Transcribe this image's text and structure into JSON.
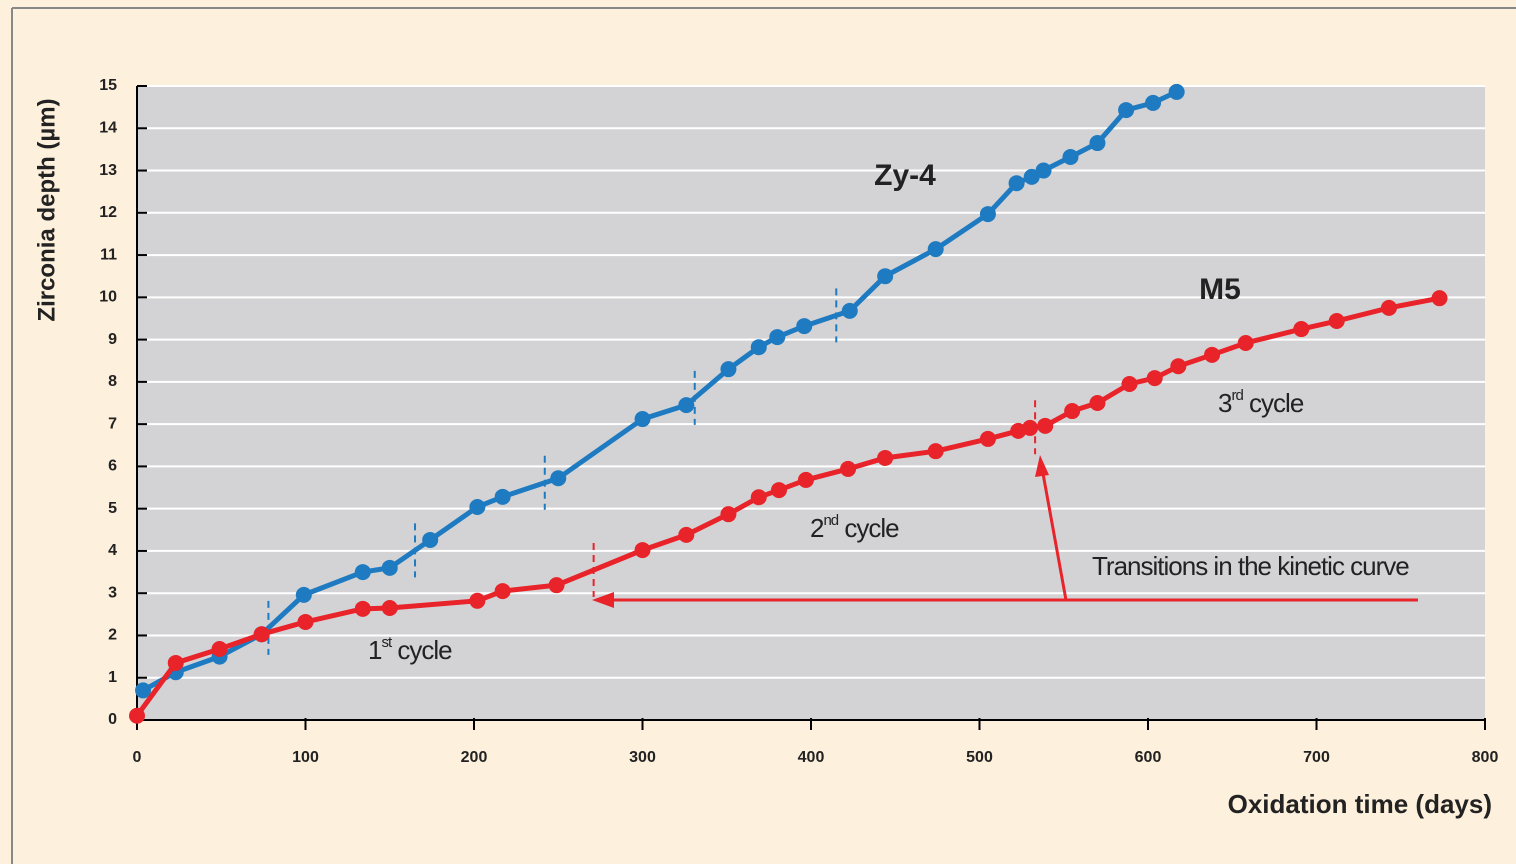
{
  "chart_data": {
    "type": "line",
    "xlabel": "Oxidation time (days)",
    "ylabel": "Zirconia depth (µm)",
    "xlim": [
      0,
      800
    ],
    "xticks": [
      0,
      100,
      200,
      300,
      400,
      500,
      600,
      700,
      800
    ],
    "ylim": [
      0,
      15
    ],
    "yticks": [
      0,
      1,
      2,
      3,
      4,
      5,
      6,
      7,
      8,
      9,
      10,
      11,
      12,
      13,
      14,
      15
    ],
    "grid": true,
    "series": [
      {
        "name": "Zy-4",
        "color": "#1f7bc1",
        "x": [
          3.6,
          23,
          49,
          74,
          99,
          134,
          150,
          174,
          202,
          217,
          250,
          300,
          326,
          351,
          369,
          380,
          396,
          423,
          444,
          474,
          505,
          522,
          531,
          538,
          554,
          570,
          587,
          603,
          617
        ],
        "values": [
          0.7,
          1.13,
          1.5,
          2.03,
          2.96,
          3.5,
          3.6,
          4.26,
          5.04,
          5.28,
          5.72,
          7.12,
          7.45,
          8.3,
          8.82,
          9.06,
          9.32,
          9.68,
          10.5,
          11.14,
          11.97,
          12.7,
          12.85,
          13.0,
          13.32,
          13.65,
          14.43,
          14.6,
          14.86
        ],
        "transitions": [
          78,
          165,
          242,
          331,
          415
        ]
      },
      {
        "name": "M5",
        "color": "#e8232a",
        "x": [
          0,
          23,
          49,
          74,
          100,
          134,
          150,
          202,
          217,
          249,
          300,
          326,
          351,
          369,
          381,
          397,
          422,
          444,
          474,
          505,
          523,
          530,
          539,
          555,
          570,
          589,
          604,
          618,
          638,
          658,
          691,
          712,
          743,
          773
        ],
        "values": [
          0.1,
          1.35,
          1.68,
          2.03,
          2.32,
          2.63,
          2.65,
          2.82,
          3.05,
          3.19,
          4.02,
          4.38,
          4.87,
          5.27,
          5.44,
          5.68,
          5.94,
          6.2,
          6.36,
          6.65,
          6.84,
          6.91,
          6.96,
          7.31,
          7.5,
          7.95,
          8.09,
          8.37,
          8.64,
          8.92,
          9.25,
          9.44,
          9.75,
          9.98
        ],
        "transitions": [
          271,
          533
        ]
      }
    ],
    "annotations": [
      {
        "parts": [
          "1",
          "st",
          " cycle"
        ]
      },
      {
        "parts": [
          "2",
          "nd",
          " cycle"
        ]
      },
      {
        "parts": [
          "3",
          "rd",
          " cycle"
        ]
      },
      {
        "parts": [
          "Transitions in the kinetic curve"
        ]
      }
    ]
  }
}
